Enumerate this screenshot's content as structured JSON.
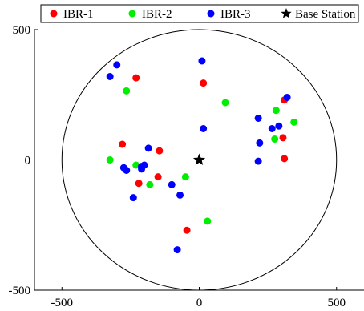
{
  "chart_data": {
    "type": "scatter",
    "title": "",
    "xlabel": "",
    "ylabel": "",
    "xlim": [
      -600,
      600
    ],
    "ylim": [
      -500,
      500
    ],
    "xticks": [
      -500,
      0,
      500
    ],
    "yticks": [
      -500,
      0,
      500
    ],
    "xtick_labels": [
      "-500",
      "0",
      "500"
    ],
    "ytick_labels": [
      "-500",
      "0",
      "500"
    ],
    "grid": false,
    "legend_position": "top",
    "boundary_circle": {
      "center": [
        0,
        0
      ],
      "radius": 500
    },
    "series": [
      {
        "name": "IBR-1",
        "color": "#ff0000",
        "marker": "circle",
        "points": [
          [
            -230,
            315
          ],
          [
            15,
            295
          ],
          [
            -280,
            60
          ],
          [
            -145,
            35
          ],
          [
            -220,
            -90
          ],
          [
            -150,
            -65
          ],
          [
            -45,
            -270
          ],
          [
            310,
            230
          ],
          [
            305,
            85
          ],
          [
            310,
            5
          ]
        ]
      },
      {
        "name": "IBR-2",
        "color": "#00ee00",
        "marker": "circle",
        "points": [
          [
            -265,
            265
          ],
          [
            95,
            220
          ],
          [
            -325,
            0
          ],
          [
            -230,
            -20
          ],
          [
            -180,
            -95
          ],
          [
            -50,
            -65
          ],
          [
            30,
            -235
          ],
          [
            280,
            190
          ],
          [
            345,
            145
          ],
          [
            275,
            80
          ]
        ]
      },
      {
        "name": "IBR-3",
        "color": "#0000ff",
        "marker": "circle",
        "points": [
          [
            -300,
            365
          ],
          [
            -325,
            320
          ],
          [
            10,
            380
          ],
          [
            15,
            120
          ],
          [
            -185,
            45
          ],
          [
            -275,
            -30
          ],
          [
            -265,
            -40
          ],
          [
            -210,
            -25
          ],
          [
            -200,
            -20
          ],
          [
            -210,
            -35
          ],
          [
            -240,
            -145
          ],
          [
            -100,
            -95
          ],
          [
            -70,
            -135
          ],
          [
            -80,
            -345
          ],
          [
            215,
            160
          ],
          [
            265,
            120
          ],
          [
            290,
            130
          ],
          [
            320,
            240
          ],
          [
            220,
            65
          ],
          [
            215,
            -5
          ]
        ]
      },
      {
        "name": "Base Station",
        "color": "#000000",
        "marker": "star",
        "points": [
          [
            0,
            0
          ]
        ]
      }
    ]
  }
}
